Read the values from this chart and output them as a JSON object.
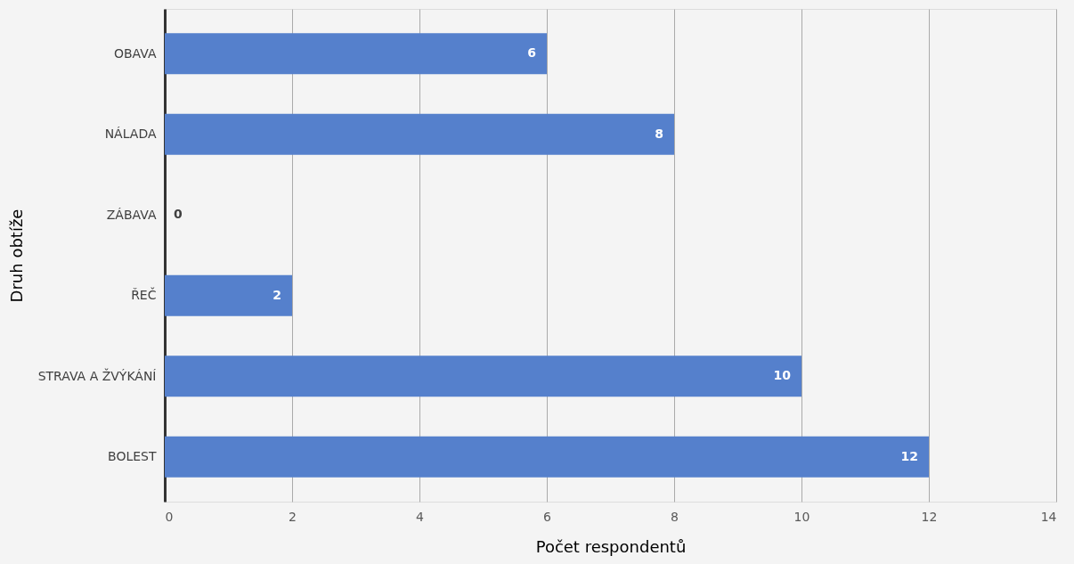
{
  "chart_data": {
    "type": "bar",
    "orientation": "horizontal",
    "xlabel": "Počet respondentů",
    "ylabel": "Druh obtíže",
    "categories": [
      "OBAVA",
      "NÁLADA",
      "ZÁBAVA",
      "ŘEČ",
      "STRAVA A ŽVÝKÁNÍ",
      "BOLEST"
    ],
    "values": [
      6,
      8,
      0,
      2,
      10,
      12
    ],
    "color": "#5580cc",
    "xlim": [
      0,
      14
    ],
    "xticks": [
      0,
      2,
      4,
      6,
      8,
      10,
      12,
      14
    ],
    "grid": "x",
    "data_labels": true
  }
}
